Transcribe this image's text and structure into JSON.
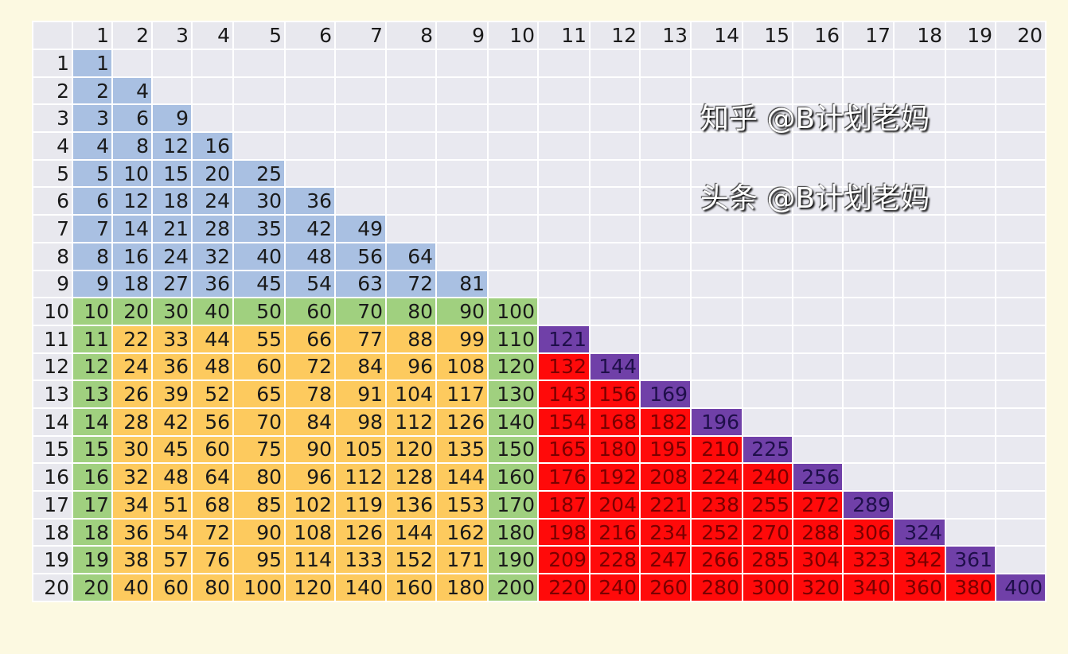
{
  "colors": {
    "background": "#fcf9e1",
    "empty": "#e9e9f0",
    "header": "#e8e8ee",
    "blue": "#a9c0e2",
    "green": "#a0d07f",
    "yellow": "#fdca5e",
    "red": "#ff0a0a",
    "purple": "#7040a8"
  },
  "column_headers": [
    "1",
    "2",
    "3",
    "4",
    "5",
    "6",
    "7",
    "8",
    "9",
    "10",
    "11",
    "12",
    "13",
    "14",
    "15",
    "16",
    "17",
    "18",
    "19",
    "20"
  ],
  "row_headers": [
    "1",
    "2",
    "3",
    "4",
    "5",
    "6",
    "7",
    "8",
    "9",
    "10",
    "11",
    "12",
    "13",
    "14",
    "15",
    "16",
    "17",
    "18",
    "19",
    "20"
  ],
  "rows": [
    [
      1
    ],
    [
      2,
      4
    ],
    [
      3,
      6,
      9
    ],
    [
      4,
      8,
      12,
      16
    ],
    [
      5,
      10,
      15,
      20,
      25
    ],
    [
      6,
      12,
      18,
      24,
      30,
      36
    ],
    [
      7,
      14,
      21,
      28,
      35,
      42,
      49
    ],
    [
      8,
      16,
      24,
      32,
      40,
      48,
      56,
      64
    ],
    [
      9,
      18,
      27,
      36,
      45,
      54,
      63,
      72,
      81
    ],
    [
      10,
      20,
      30,
      40,
      50,
      60,
      70,
      80,
      90,
      100
    ],
    [
      11,
      22,
      33,
      44,
      55,
      66,
      77,
      88,
      99,
      110,
      121
    ],
    [
      12,
      24,
      36,
      48,
      60,
      72,
      84,
      96,
      108,
      120,
      132,
      144
    ],
    [
      13,
      26,
      39,
      52,
      65,
      78,
      91,
      104,
      117,
      130,
      143,
      156,
      169
    ],
    [
      14,
      28,
      42,
      56,
      70,
      84,
      98,
      112,
      126,
      140,
      154,
      168,
      182,
      196
    ],
    [
      15,
      30,
      45,
      60,
      75,
      90,
      105,
      120,
      135,
      150,
      165,
      180,
      195,
      210,
      225
    ],
    [
      16,
      32,
      48,
      64,
      80,
      96,
      112,
      128,
      144,
      160,
      176,
      192,
      208,
      224,
      240,
      256
    ],
    [
      17,
      34,
      51,
      68,
      85,
      102,
      119,
      136,
      153,
      170,
      187,
      204,
      221,
      238,
      255,
      272,
      289
    ],
    [
      18,
      36,
      54,
      72,
      90,
      108,
      126,
      144,
      162,
      180,
      198,
      216,
      234,
      252,
      270,
      288,
      306,
      324
    ],
    [
      19,
      38,
      57,
      76,
      95,
      114,
      133,
      152,
      171,
      190,
      209,
      228,
      247,
      266,
      285,
      304,
      323,
      342,
      361
    ],
    [
      20,
      40,
      60,
      80,
      100,
      120,
      140,
      160,
      180,
      200,
      220,
      240,
      260,
      280,
      300,
      320,
      340,
      360,
      380,
      400
    ]
  ],
  "watermark": {
    "zhihu": "知乎 @B计划老妈",
    "toutiao": "头条 @B计划老妈"
  }
}
